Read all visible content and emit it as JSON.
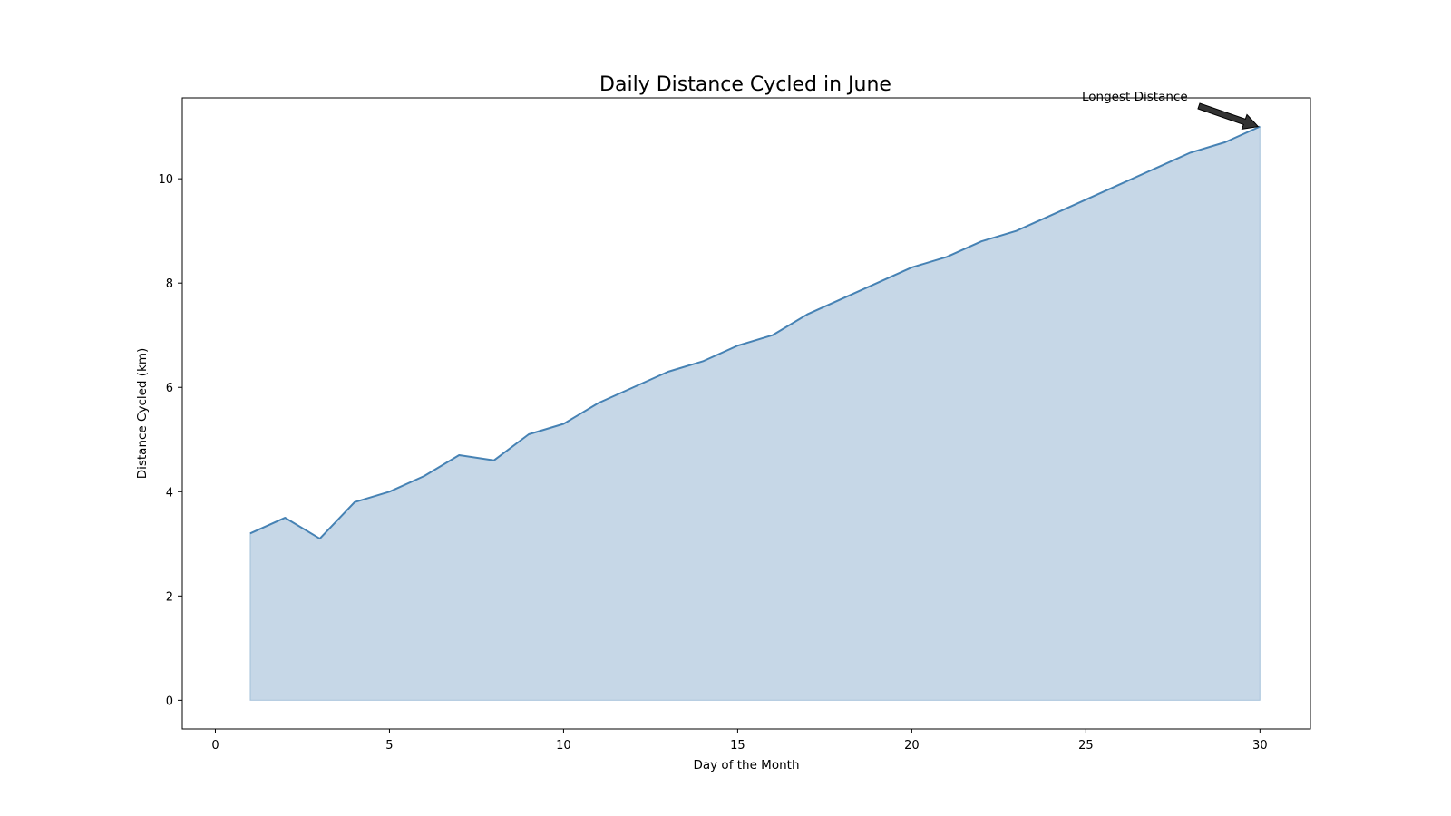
{
  "chart_data": {
    "type": "area",
    "title": "Daily Distance Cycled in June",
    "xlabel": "Day of the Month",
    "ylabel": "Distance Cycled (km)",
    "xlim": [
      -0.95,
      31.45
    ],
    "ylim": [
      -0.55,
      11.55
    ],
    "xticks": [
      0,
      5,
      10,
      15,
      20,
      25,
      30
    ],
    "yticks": [
      0,
      2,
      4,
      6,
      8,
      10
    ],
    "grid": false,
    "x": [
      1,
      2,
      3,
      4,
      5,
      6,
      7,
      8,
      9,
      10,
      11,
      12,
      13,
      14,
      15,
      16,
      17,
      18,
      19,
      20,
      21,
      22,
      23,
      24,
      25,
      26,
      27,
      28,
      29,
      30
    ],
    "series": [
      {
        "values": [
          3.2,
          3.5,
          3.1,
          3.8,
          4.0,
          4.3,
          4.7,
          4.6,
          5.1,
          5.3,
          5.7,
          6.0,
          6.3,
          6.5,
          6.8,
          7.0,
          7.4,
          7.7,
          8.0,
          8.3,
          8.5,
          8.8,
          9.0,
          9.3,
          9.6,
          9.9,
          10.2,
          10.5,
          10.7,
          11.0
        ],
        "line_color": "#4682b4",
        "fill_color": "#c6d7e7"
      }
    ],
    "annotation": {
      "text": "Longest Distance",
      "x": 30,
      "y": 11.0,
      "arrow_color": "#333333"
    }
  }
}
